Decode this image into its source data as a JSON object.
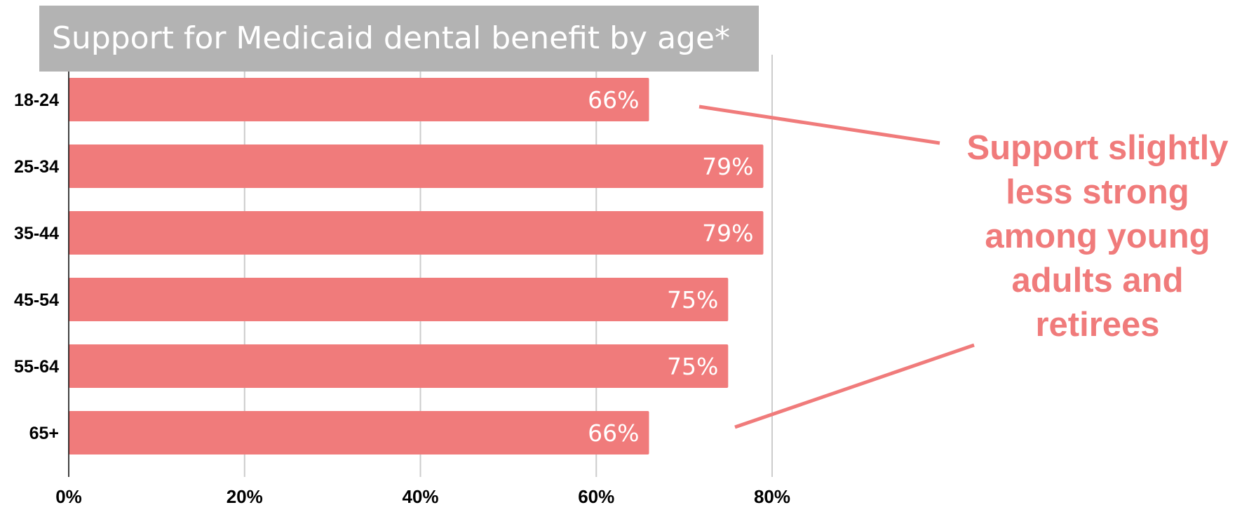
{
  "chart_data": {
    "type": "bar",
    "orientation": "horizontal",
    "title": "Support for Medicaid dental benefit by age*",
    "categories": [
      "18-24",
      "25-34",
      "35-44",
      "45-54",
      "55-64",
      "65+"
    ],
    "values": [
      66,
      79,
      79,
      75,
      75,
      66
    ],
    "value_labels": [
      "66%",
      "79%",
      "79%",
      "75%",
      "75%",
      "66%"
    ],
    "x_ticks": [
      "0%",
      "20%",
      "40%",
      "60%",
      "80%"
    ],
    "xlim": [
      0,
      80
    ],
    "grid": true,
    "annotation": "Support slightly less strong among young adults and retirees"
  },
  "colors": {
    "bar": "#f07b7b",
    "title_background": "#b3b3b3",
    "grid": "#cccccc",
    "annotation": "#f07b7b"
  }
}
